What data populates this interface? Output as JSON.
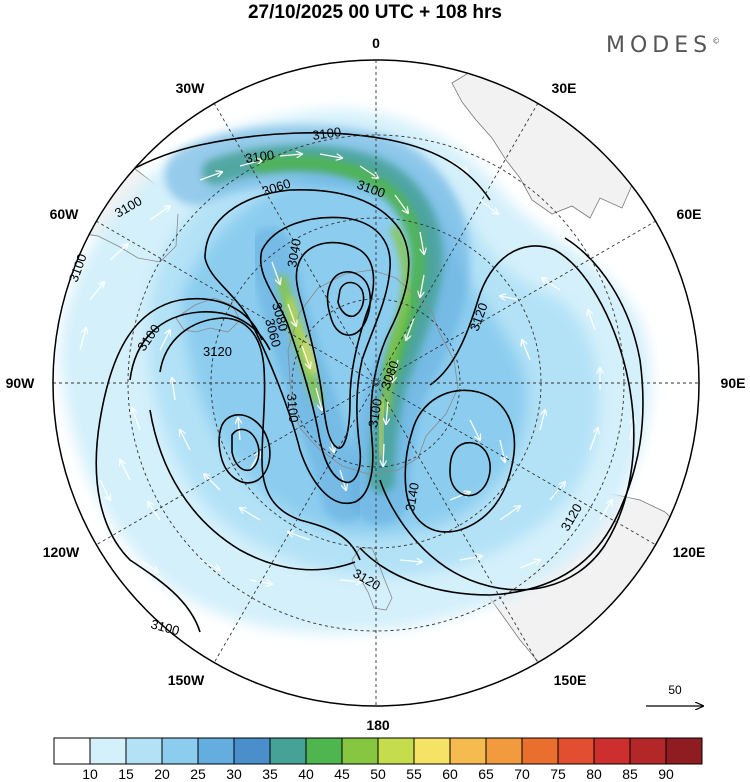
{
  "header": {
    "title": "27/10/2025  00 UTC  + 108 hrs",
    "brand": "MODES",
    "brand_mark": "©"
  },
  "map": {
    "projection": "south-polar-stereographic",
    "longitude_labels": {
      "lon_0": "0",
      "lon_30e": "30E",
      "lon_60e": "60E",
      "lon_90e": "90E",
      "lon_120e": "120E",
      "lon_150e": "150E",
      "lon_180": "180",
      "lon_150w": "150W",
      "lon_120w": "120W",
      "lon_90w": "90W",
      "lon_60w": "60W",
      "lon_30w": "30W"
    },
    "contour_labels": [
      "3100",
      "3100",
      "3100",
      "3100",
      "3100",
      "3100",
      "3060",
      "3040",
      "3120",
      "3080",
      "3060",
      "3100",
      "3080",
      "3100",
      "3140",
      "3120",
      "3120",
      "3120",
      "3100"
    ],
    "reference_vector": "50",
    "colors": {
      "land": "#f2f2f2",
      "coast": "#7a7a7a",
      "grid": "#333333"
    }
  },
  "colorbar": {
    "ticks": [
      "10",
      "15",
      "20",
      "25",
      "30",
      "35",
      "40",
      "45",
      "50",
      "55",
      "60",
      "65",
      "70",
      "75",
      "80",
      "85",
      "90"
    ],
    "colors": [
      "#ffffff",
      "#d4f0fb",
      "#b3e2f7",
      "#8ccdef",
      "#63addf",
      "#4a8fcb",
      "#46a197",
      "#4fb54e",
      "#86c641",
      "#c5dc4c",
      "#f6e264",
      "#f6bb4e",
      "#f19a3e",
      "#ea6f2f",
      "#e14e30",
      "#cd2f2e",
      "#b42729",
      "#8f1c20"
    ]
  }
}
